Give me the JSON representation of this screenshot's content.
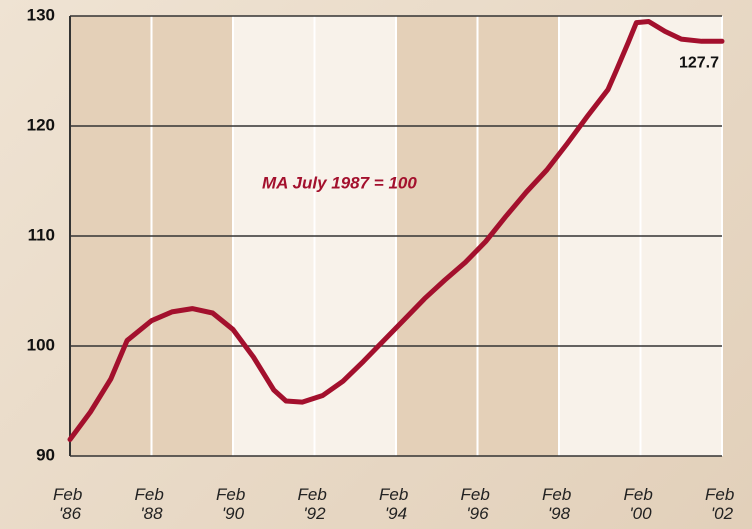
{
  "chart_data": {
    "type": "line",
    "annotation": "MA July 1987 = 100",
    "x": [
      1986.1,
      1986.6,
      1987.1,
      1987.5,
      1988.1,
      1988.6,
      1989.1,
      1989.6,
      1990.1,
      1990.6,
      1991.1,
      1991.4,
      1991.8,
      1992.3,
      1992.8,
      1993.3,
      1993.8,
      1994.3,
      1994.8,
      1995.3,
      1995.8,
      1996.3,
      1996.8,
      1997.3,
      1997.8,
      1998.3,
      1998.8,
      1999.3,
      1999.5,
      1999.8,
      2000.0,
      2000.3,
      2000.7,
      2001.1,
      2001.6,
      2002.1
    ],
    "series": [
      {
        "color": "#a3102d",
        "values": [
          91.5,
          94,
          97,
          100.5,
          102.3,
          103.1,
          103.4,
          103,
          101.5,
          99,
          96,
          95,
          94.9,
          95.5,
          96.8,
          98.6,
          100.5,
          102.4,
          104.3,
          106,
          107.6,
          109.5,
          111.8,
          114,
          116,
          118.4,
          120.9,
          123.3,
          125,
          127.6,
          129.4,
          129.5,
          128.6,
          127.9,
          127.7,
          127.7
        ]
      }
    ],
    "xlim": [
      1986.1,
      2002.1
    ],
    "xticks": [
      {
        "value": 1986.1,
        "label": "Feb '86"
      },
      {
        "value": 1988.1,
        "label": "Feb '88"
      },
      {
        "value": 1990.1,
        "label": "Feb '90"
      },
      {
        "value": 1992.1,
        "label": "Feb '92"
      },
      {
        "value": 1994.1,
        "label": "Feb '94"
      },
      {
        "value": 1996.1,
        "label": "Feb '96"
      },
      {
        "value": 1998.1,
        "label": "Feb '98"
      },
      {
        "value": 2000.1,
        "label": "Feb '00"
      },
      {
        "value": 2002.1,
        "label": "Feb '02"
      }
    ],
    "ylim": [
      90,
      130
    ],
    "yticks": [
      90,
      100,
      110,
      120,
      130
    ],
    "grid": true
  }
}
